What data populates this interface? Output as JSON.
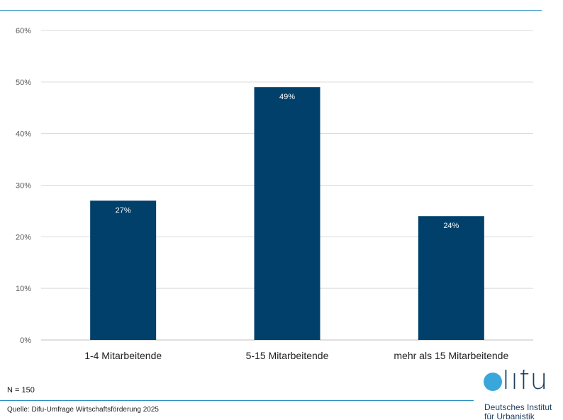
{
  "chart_data": {
    "type": "bar",
    "categories": [
      "1-4 Mitarbeitende",
      "5-15 Mitarbeitende",
      "mehr als 15 Mitarbeitende"
    ],
    "values": [
      27,
      49,
      24
    ],
    "data_labels": [
      "27%",
      "49%",
      "24%"
    ],
    "y_ticks": [
      "0%",
      "10%",
      "20%",
      "30%",
      "40%",
      "50%",
      "60%"
    ],
    "ylim": [
      0,
      60
    ],
    "grid": true,
    "bar_color": "#00406b"
  },
  "footer": {
    "n": "N = 150",
    "source": "Quelle: Difu-Umfrage Wirtschaftsförderung 2025"
  },
  "logo": {
    "word": "lifu",
    "line1": "Deutsches Institut",
    "line2": "für Urbanistik"
  },
  "colors": {
    "accent_rule": "#2a8fc4",
    "logo_dot": "#3aa7dc",
    "logo_text": "#1d3f5e"
  }
}
